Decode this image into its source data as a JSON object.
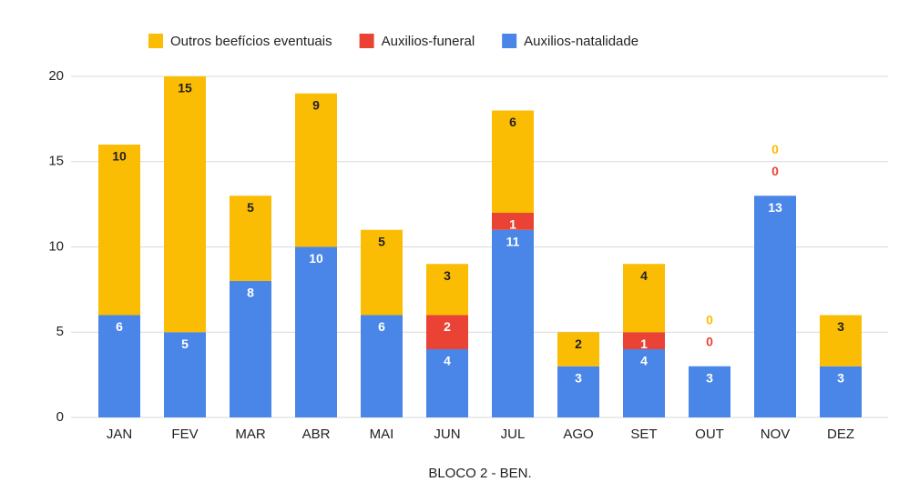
{
  "chart_data": {
    "type": "bar",
    "stacked": true,
    "x_label": "BLOCO 2 - BEN.",
    "categories": [
      "JAN",
      "FEV",
      "MAR",
      "ABR",
      "MAI",
      "JUN",
      "JUL",
      "AGO",
      "SET",
      "OUT",
      "NOV",
      "DEZ"
    ],
    "series": [
      {
        "name": "Outros beefícios eventuais",
        "color": "#fbbc04",
        "values": [
          10,
          15,
          5,
          9,
          5,
          3,
          6,
          2,
          4,
          0,
          0,
          3
        ]
      },
      {
        "name": "Auxilios-funeral",
        "color": "#ea4335",
        "values": [
          0,
          0,
          0,
          0,
          0,
          2,
          1,
          0,
          1,
          0,
          0,
          0
        ]
      },
      {
        "name": "Auxilios-natalidade",
        "color": "#4a86e8",
        "values": [
          6,
          5,
          8,
          10,
          6,
          4,
          11,
          3,
          4,
          3,
          13,
          3
        ]
      }
    ],
    "ylim": [
      0,
      20
    ],
    "yticks": [
      0,
      5,
      10,
      15,
      20
    ],
    "grid": true,
    "legend": "top"
  }
}
